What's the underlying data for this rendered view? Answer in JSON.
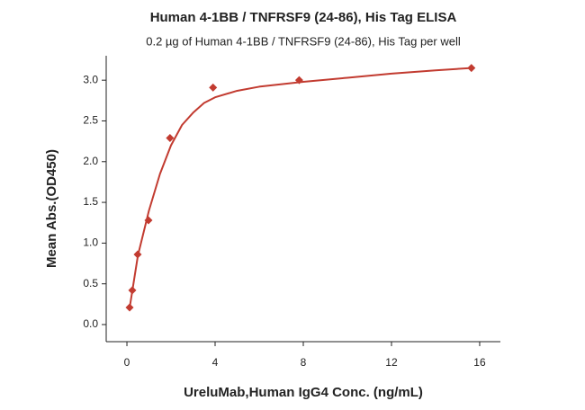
{
  "chart_data": {
    "type": "scatter",
    "title": "Human 4-1BB / TNFRSF9 (24-86), His Tag ELISA",
    "subtitle": "0.2 µg of Human 4-1BB / TNFRSF9 (24-86), His Tag per well",
    "x_label": "UreluMab,Human IgG4 Conc. (ng/mL)",
    "y_label": "Mean Abs.(OD450)",
    "xlim": [
      -0.94,
      16.94
    ],
    "xticks": [
      0,
      4,
      8,
      12,
      16
    ],
    "ylim": [
      -0.21,
      3.3
    ],
    "yticks": [
      {
        "value": 0,
        "label": "0.0"
      },
      0.5,
      {
        "value": 1,
        "label": "1.0"
      },
      1.5,
      {
        "value": 2,
        "label": "2.0"
      },
      2.5,
      {
        "value": 3,
        "label": "3.0"
      }
    ],
    "series": [
      {
        "type": "scatter",
        "color": "#c23b30",
        "x": [
          0.122,
          0.244,
          0.488,
          0.977,
          1.953,
          3.906,
          7.813,
          15.625
        ],
        "values": [
          0.21,
          0.42,
          0.86,
          1.28,
          2.29,
          2.91,
          3.0,
          3.15
        ]
      },
      {
        "type": "line",
        "color": "#c23b30",
        "x": [
          0.12,
          0.5,
          1,
          1.5,
          2,
          2.5,
          3,
          3.5,
          4,
          5,
          6,
          8,
          10,
          12,
          14,
          15.625
        ],
        "values": [
          0.2,
          0.85,
          1.4,
          1.85,
          2.2,
          2.45,
          2.6,
          2.72,
          2.79,
          2.87,
          2.92,
          2.98,
          3.03,
          3.08,
          3.12,
          3.15
        ]
      }
    ]
  }
}
